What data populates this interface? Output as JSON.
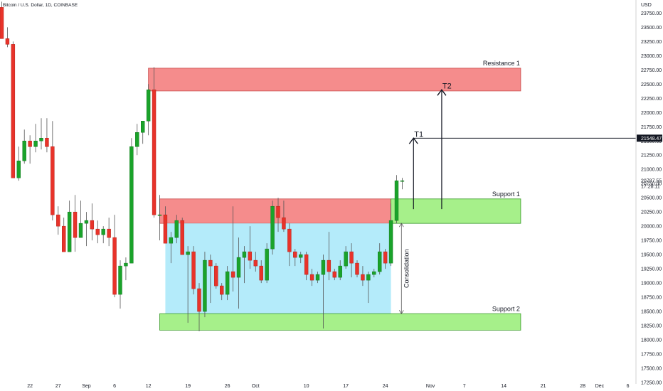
{
  "header": {
    "title": "Bitcoin / U.S. Dollar, 1D, COINBASE"
  },
  "colors": {
    "up": "#1aa32a",
    "down": "#e8332a",
    "wick": "#555555",
    "resistance_fill": "#f58c8c",
    "support_fill": "#a6f08a",
    "consolidation_fill": "#b4ebfa",
    "price_tag": "#131722",
    "axis_line": "#d0d0d0"
  },
  "chart_data": {
    "type": "candlestick",
    "y_axis": {
      "unit_label": "USD",
      "ylim": [
        17100,
        23980
      ],
      "ticks": [
        "23750.00",
        "23500.00",
        "23250.00",
        "23000.00",
        "22750.00",
        "22500.00",
        "22250.00",
        "22000.00",
        "21750.00",
        "21500.00",
        "21250.00",
        "21000.00",
        "20750.00",
        "20500.00",
        "20250.00",
        "20000.00",
        "19750.00",
        "19500.00",
        "19250.00",
        "19000.00",
        "18750.00",
        "18500.00",
        "18250.00",
        "18000.00",
        "17750.00",
        "17500.00",
        "17250.00"
      ]
    },
    "x_axis": {
      "start_date": "2022-08-17",
      "end_date": "2022-12-07",
      "ticks": [
        {
          "label": "22",
          "date": "2022-08-22"
        },
        {
          "label": "27",
          "date": "2022-08-27"
        },
        {
          "label": "Sep",
          "date": "2022-09-01"
        },
        {
          "label": "6",
          "date": "2022-09-06"
        },
        {
          "label": "12",
          "date": "2022-09-12"
        },
        {
          "label": "19",
          "date": "2022-09-19"
        },
        {
          "label": "26",
          "date": "2022-09-26"
        },
        {
          "label": "Oct",
          "date": "2022-10-01"
        },
        {
          "label": "10",
          "date": "2022-10-10"
        },
        {
          "label": "17",
          "date": "2022-10-17"
        },
        {
          "label": "24",
          "date": "2022-10-24"
        },
        {
          "label": "Nov",
          "date": "2022-11-01"
        },
        {
          "label": "7",
          "date": "2022-11-07"
        },
        {
          "label": "14",
          "date": "2022-11-14"
        },
        {
          "label": "21",
          "date": "2022-11-21"
        },
        {
          "label": "28",
          "date": "2022-11-28"
        },
        {
          "label": "Dec",
          "date": "2022-12-01"
        },
        {
          "label": "6",
          "date": "2022-12-06"
        }
      ]
    },
    "candles": [
      {
        "date": "2022-08-17",
        "o": 23850,
        "h": 23950,
        "l": 23300,
        "c": 23300
      },
      {
        "date": "2022-08-18",
        "o": 23300,
        "h": 23500,
        "l": 23150,
        "c": 23200
      },
      {
        "date": "2022-08-19",
        "o": 23200,
        "h": 23250,
        "l": 20850,
        "c": 20850
      },
      {
        "date": "2022-08-20",
        "o": 20850,
        "h": 21400,
        "l": 20800,
        "c": 21150
      },
      {
        "date": "2022-08-21",
        "o": 21150,
        "h": 21700,
        "l": 21100,
        "c": 21500
      },
      {
        "date": "2022-08-22",
        "o": 21500,
        "h": 21600,
        "l": 21100,
        "c": 21400
      },
      {
        "date": "2022-08-23",
        "o": 21400,
        "h": 21800,
        "l": 21300,
        "c": 21500
      },
      {
        "date": "2022-08-24",
        "o": 21500,
        "h": 21900,
        "l": 21350,
        "c": 21550
      },
      {
        "date": "2022-08-25",
        "o": 21550,
        "h": 21900,
        "l": 21300,
        "c": 21400
      },
      {
        "date": "2022-08-26",
        "o": 21400,
        "h": 21850,
        "l": 20100,
        "c": 20200
      },
      {
        "date": "2022-08-27",
        "o": 20200,
        "h": 20350,
        "l": 19850,
        "c": 20000
      },
      {
        "date": "2022-08-28",
        "o": 20000,
        "h": 20150,
        "l": 19550,
        "c": 19550
      },
      {
        "date": "2022-08-29",
        "o": 19550,
        "h": 20450,
        "l": 19550,
        "c": 20250
      },
      {
        "date": "2022-08-30",
        "o": 20250,
        "h": 20550,
        "l": 19550,
        "c": 19800
      },
      {
        "date": "2022-08-31",
        "o": 19800,
        "h": 20450,
        "l": 19800,
        "c": 20050
      },
      {
        "date": "2022-09-01",
        "o": 20050,
        "h": 20250,
        "l": 19650,
        "c": 20100
      },
      {
        "date": "2022-09-02",
        "o": 20100,
        "h": 20400,
        "l": 19750,
        "c": 19950
      },
      {
        "date": "2022-09-03",
        "o": 19950,
        "h": 20100,
        "l": 19700,
        "c": 19850
      },
      {
        "date": "2022-09-04",
        "o": 19850,
        "h": 20000,
        "l": 19700,
        "c": 19950
      },
      {
        "date": "2022-09-05",
        "o": 19950,
        "h": 20150,
        "l": 19650,
        "c": 19800
      },
      {
        "date": "2022-09-06",
        "o": 19800,
        "h": 20200,
        "l": 18750,
        "c": 18800
      },
      {
        "date": "2022-09-07",
        "o": 18800,
        "h": 19400,
        "l": 18550,
        "c": 19300
      },
      {
        "date": "2022-09-08",
        "o": 19300,
        "h": 19450,
        "l": 19050,
        "c": 19350
      },
      {
        "date": "2022-09-09",
        "o": 19350,
        "h": 21550,
        "l": 19350,
        "c": 21400
      },
      {
        "date": "2022-09-10",
        "o": 21400,
        "h": 21800,
        "l": 21250,
        "c": 21650
      },
      {
        "date": "2022-09-11",
        "o": 21650,
        "h": 21850,
        "l": 21450,
        "c": 21850
      },
      {
        "date": "2022-09-12",
        "o": 21850,
        "h": 22500,
        "l": 21600,
        "c": 22400
      },
      {
        "date": "2022-09-13",
        "o": 22400,
        "h": 22800,
        "l": 20150,
        "c": 20200
      },
      {
        "date": "2022-09-14",
        "o": 20200,
        "h": 20550,
        "l": 19750,
        "c": 20200
      },
      {
        "date": "2022-09-15",
        "o": 20200,
        "h": 20350,
        "l": 19700,
        "c": 19700
      },
      {
        "date": "2022-09-16",
        "o": 19700,
        "h": 19900,
        "l": 19350,
        "c": 19800
      },
      {
        "date": "2022-09-17",
        "o": 19800,
        "h": 20200,
        "l": 19700,
        "c": 20100
      },
      {
        "date": "2022-09-18",
        "o": 20100,
        "h": 20150,
        "l": 19500,
        "c": 19500
      },
      {
        "date": "2022-09-19",
        "o": 19500,
        "h": 19650,
        "l": 18300,
        "c": 19550
      },
      {
        "date": "2022-09-20",
        "o": 19550,
        "h": 19650,
        "l": 18800,
        "c": 18900
      },
      {
        "date": "2022-09-21",
        "o": 18900,
        "h": 19000,
        "l": 18150,
        "c": 18500
      },
      {
        "date": "2022-09-22",
        "o": 18500,
        "h": 19550,
        "l": 18400,
        "c": 19400
      },
      {
        "date": "2022-09-23",
        "o": 19400,
        "h": 19500,
        "l": 18650,
        "c": 19300
      },
      {
        "date": "2022-09-24",
        "o": 19300,
        "h": 19350,
        "l": 18900,
        "c": 18950
      },
      {
        "date": "2022-09-25",
        "o": 18950,
        "h": 19000,
        "l": 18700,
        "c": 18800
      },
      {
        "date": "2022-09-26",
        "o": 18800,
        "h": 19300,
        "l": 18700,
        "c": 19200
      },
      {
        "date": "2022-09-27",
        "o": 19200,
        "h": 20350,
        "l": 18850,
        "c": 19100
      },
      {
        "date": "2022-09-28",
        "o": 19100,
        "h": 19800,
        "l": 18550,
        "c": 19450
      },
      {
        "date": "2022-09-29",
        "o": 19450,
        "h": 19650,
        "l": 19000,
        "c": 19550
      },
      {
        "date": "2022-09-30",
        "o": 19550,
        "h": 20000,
        "l": 19250,
        "c": 19400
      },
      {
        "date": "2022-10-01",
        "o": 19400,
        "h": 19550,
        "l": 19200,
        "c": 19300
      },
      {
        "date": "2022-10-02",
        "o": 19300,
        "h": 19400,
        "l": 19000,
        "c": 19050
      },
      {
        "date": "2022-10-03",
        "o": 19050,
        "h": 19700,
        "l": 19000,
        "c": 19600
      },
      {
        "date": "2022-10-04",
        "o": 19600,
        "h": 20450,
        "l": 19500,
        "c": 20350
      },
      {
        "date": "2022-10-05",
        "o": 20350,
        "h": 20500,
        "l": 19900,
        "c": 20150
      },
      {
        "date": "2022-10-06",
        "o": 20150,
        "h": 20450,
        "l": 19900,
        "c": 19950
      },
      {
        "date": "2022-10-07",
        "o": 19950,
        "h": 20050,
        "l": 19300,
        "c": 19550
      },
      {
        "date": "2022-10-08",
        "o": 19550,
        "h": 19600,
        "l": 19300,
        "c": 19450
      },
      {
        "date": "2022-10-09",
        "o": 19450,
        "h": 19550,
        "l": 19350,
        "c": 19500
      },
      {
        "date": "2022-10-10",
        "o": 19500,
        "h": 19550,
        "l": 19050,
        "c": 19150
      },
      {
        "date": "2022-10-11",
        "o": 19150,
        "h": 19250,
        "l": 18950,
        "c": 19050
      },
      {
        "date": "2022-10-12",
        "o": 19050,
        "h": 19200,
        "l": 19000,
        "c": 19150
      },
      {
        "date": "2022-10-13",
        "o": 19150,
        "h": 19500,
        "l": 18200,
        "c": 19400
      },
      {
        "date": "2022-10-14",
        "o": 19400,
        "h": 19900,
        "l": 19050,
        "c": 19200
      },
      {
        "date": "2022-10-15",
        "o": 19200,
        "h": 19250,
        "l": 19050,
        "c": 19100
      },
      {
        "date": "2022-10-16",
        "o": 19100,
        "h": 19400,
        "l": 19050,
        "c": 19300
      },
      {
        "date": "2022-10-17",
        "o": 19300,
        "h": 19650,
        "l": 19250,
        "c": 19550
      },
      {
        "date": "2022-10-18",
        "o": 19550,
        "h": 19700,
        "l": 19100,
        "c": 19350
      },
      {
        "date": "2022-10-19",
        "o": 19350,
        "h": 19400,
        "l": 19100,
        "c": 19150
      },
      {
        "date": "2022-10-20",
        "o": 19150,
        "h": 19300,
        "l": 18950,
        "c": 19050
      },
      {
        "date": "2022-10-21",
        "o": 19050,
        "h": 19200,
        "l": 18650,
        "c": 19150
      },
      {
        "date": "2022-10-22",
        "o": 19150,
        "h": 19250,
        "l": 19100,
        "c": 19200
      },
      {
        "date": "2022-10-23",
        "o": 19200,
        "h": 19700,
        "l": 19150,
        "c": 19550
      },
      {
        "date": "2022-10-24",
        "o": 19550,
        "h": 19600,
        "l": 19250,
        "c": 19350
      },
      {
        "date": "2022-10-25",
        "o": 19350,
        "h": 20400,
        "l": 19300,
        "c": 20100
      },
      {
        "date": "2022-10-26",
        "o": 20100,
        "h": 20900,
        "l": 20050,
        "c": 20800
      },
      {
        "date": "2022-10-27",
        "o": 20800,
        "h": 20850,
        "l": 20650,
        "c": 20800
      }
    ],
    "zones": [
      {
        "label": "Resistance 1",
        "from_date": "2022-09-12",
        "to_date": "2022-11-17",
        "y_low": 22380,
        "y_high": 22780,
        "color": "#f58c8c"
      },
      {
        "label": "",
        "from_date": "2022-09-14",
        "to_date": "2022-10-25",
        "y_low": 20050,
        "y_high": 20480,
        "color": "#f58c8c"
      },
      {
        "label": "",
        "from_date": "2022-09-15",
        "to_date": "2022-10-25",
        "y_low": 18460,
        "y_high": 20050,
        "color": "#b4ebfa"
      },
      {
        "label": "Support 1",
        "from_date": "2022-10-25",
        "to_date": "2022-11-17",
        "y_low": 20050,
        "y_high": 20480,
        "color": "#a6f08a"
      },
      {
        "label": "Support 2",
        "from_date": "2022-09-14",
        "to_date": "2022-11-17",
        "y_low": 18170,
        "y_high": 18460,
        "color": "#a6f08a"
      }
    ],
    "targets": [
      {
        "label": "T1",
        "date": "2022-10-29",
        "y_from": 20300,
        "y_to": 21550
      },
      {
        "label": "T2",
        "date": "2022-11-03",
        "y_from": 20300,
        "y_to": 22400
      }
    ],
    "horizontal_line": {
      "y": 21548.47,
      "from_date": "2022-10-29"
    },
    "annotation": {
      "text": "Consolidation",
      "date": "2022-10-29",
      "y_top": 20050,
      "y_bottom": 18460
    },
    "last_price_label": "20787.55",
    "countdown_label": "17:28:11",
    "line_price_label": "21548.47"
  }
}
